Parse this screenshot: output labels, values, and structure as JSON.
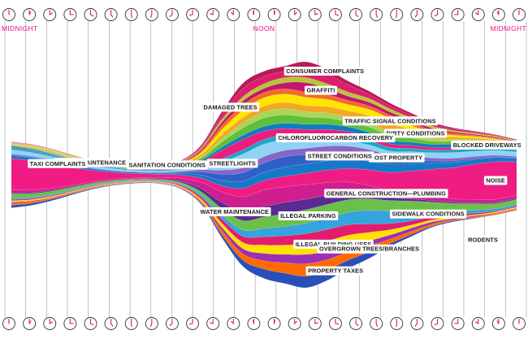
{
  "chart_data": {
    "type": "area",
    "x_tick_labels": [
      {
        "hour": 0,
        "text": "MIDNIGHT"
      },
      {
        "hour": 12,
        "text": "NOON"
      },
      {
        "hour": 24,
        "text": "MIDNIGHT"
      }
    ],
    "x_range": [
      0,
      24
    ],
    "grid": true,
    "legend": "none",
    "series": [
      {
        "name": "PROPERTY TAXES",
        "color": "#2b4fb8",
        "values": [
          0.25,
          0.2,
          0.15,
          0.1,
          0.08,
          0.06,
          0.05,
          0.04,
          0.05,
          0.1,
          0.3,
          0.6,
          0.9,
          1.0,
          1.1,
          1.0,
          0.8,
          0.6,
          0.3,
          0.2,
          0.1,
          0.1,
          0.05,
          0.05,
          0.05
        ]
      },
      {
        "name": "OVERGROWN TREES/BRANCHES",
        "color": "#ff6a00",
        "values": [
          0.2,
          0.15,
          0.1,
          0.08,
          0.06,
          0.05,
          0.04,
          0.04,
          0.05,
          0.1,
          0.4,
          0.6,
          0.8,
          1.0,
          1.2,
          1.0,
          0.8,
          0.6,
          0.4,
          0.3,
          0.2,
          0.1,
          0.1,
          0.1,
          0.1
        ]
      },
      {
        "name": "",
        "color": "#9b2fb5",
        "values": [
          0.1,
          0.08,
          0.06,
          0.05,
          0.04,
          0.03,
          0.03,
          0.03,
          0.05,
          0.1,
          0.3,
          0.5,
          0.7,
          0.8,
          0.9,
          0.8,
          0.7,
          0.5,
          0.4,
          0.3,
          0.2,
          0.1,
          0.1,
          0.05,
          0.05
        ]
      },
      {
        "name": "ILLEGAL BUILDING USES",
        "color": "#ffe000",
        "values": [
          0.15,
          0.12,
          0.1,
          0.08,
          0.06,
          0.05,
          0.05,
          0.06,
          0.1,
          0.2,
          0.4,
          0.6,
          0.8,
          0.9,
          1.0,
          1.0,
          0.9,
          0.8,
          0.5,
          0.3,
          0.2,
          0.15,
          0.1,
          0.1,
          0.1
        ]
      },
      {
        "name": "",
        "color": "#e21d6f",
        "values": [
          0.1,
          0.1,
          0.08,
          0.06,
          0.05,
          0.05,
          0.05,
          0.05,
          0.1,
          0.2,
          0.4,
          0.6,
          0.8,
          0.9,
          1.0,
          1.1,
          1.0,
          0.8,
          0.6,
          0.4,
          0.3,
          0.2,
          0.15,
          0.1,
          0.1
        ]
      },
      {
        "name": "SIDEWALK CONDITIONS",
        "color": "#35a4dc",
        "values": [
          0.15,
          0.12,
          0.1,
          0.08,
          0.06,
          0.05,
          0.05,
          0.06,
          0.1,
          0.2,
          0.4,
          0.6,
          0.8,
          0.9,
          1.0,
          1.1,
          1.2,
          1.3,
          1.2,
          1.0,
          0.6,
          0.4,
          0.3,
          0.2,
          0.2
        ]
      },
      {
        "name": "ILLEGAL PARKING",
        "color": "#6cc04a",
        "values": [
          0.4,
          0.35,
          0.3,
          0.25,
          0.2,
          0.15,
          0.1,
          0.1,
          0.15,
          0.3,
          0.6,
          0.9,
          1.1,
          1.2,
          1.3,
          1.3,
          1.2,
          1.1,
          1.0,
          0.9,
          0.8,
          0.7,
          0.6,
          0.5,
          0.45
        ]
      },
      {
        "name": "WATER MAINTENANCE",
        "color": "#5a2b93",
        "values": [
          0.1,
          0.1,
          0.08,
          0.06,
          0.05,
          0.05,
          0.05,
          0.06,
          0.1,
          0.3,
          0.6,
          0.9,
          1.0,
          1.1,
          1.0,
          0.9,
          0.7,
          0.5,
          0.3,
          0.2,
          0.15,
          0.1,
          0.1,
          0.1,
          0.1
        ]
      },
      {
        "name": "GENERAL CONSTRUCTION—PLUMBING",
        "color": "#cf1f8e",
        "values": [
          0.3,
          0.25,
          0.2,
          0.15,
          0.12,
          0.1,
          0.1,
          0.15,
          0.3,
          0.6,
          1.0,
          1.4,
          1.6,
          1.5,
          1.4,
          1.2,
          1.0,
          0.8,
          0.6,
          0.5,
          0.4,
          0.35,
          0.3,
          0.3,
          0.3
        ]
      },
      {
        "name": "NOISE",
        "color": "#ef1c84",
        "values": [
          3.0,
          2.8,
          2.3,
          1.6,
          1.0,
          0.6,
          0.4,
          0.3,
          0.3,
          0.4,
          0.6,
          0.8,
          0.9,
          1.0,
          1.1,
          1.2,
          1.3,
          1.5,
          1.8,
          2.2,
          2.6,
          3.0,
          3.4,
          3.6,
          3.2
        ]
      },
      {
        "name": "TAXI COMPLAINTS",
        "color": "#1878c8",
        "values": [
          0.3,
          0.28,
          0.25,
          0.2,
          0.15,
          0.12,
          0.1,
          0.1,
          0.15,
          0.3,
          0.5,
          0.7,
          0.8,
          0.9,
          0.9,
          0.9,
          0.9,
          0.85,
          0.8,
          0.7,
          0.6,
          0.5,
          0.45,
          0.4,
          0.35
        ]
      },
      {
        "name": "STREET CONDITIONS",
        "color": "#2f60c7",
        "values": [
          0.05,
          0.05,
          0.04,
          0.04,
          0.03,
          0.03,
          0.03,
          0.04,
          0.1,
          0.3,
          0.6,
          0.8,
          0.9,
          1.0,
          0.9,
          0.8,
          0.7,
          0.6,
          0.4,
          0.3,
          0.2,
          0.15,
          0.1,
          0.08,
          0.06
        ]
      },
      {
        "name": "LOST PROPERTY",
        "color": "#8b64c7",
        "values": [
          0.1,
          0.1,
          0.08,
          0.06,
          0.05,
          0.05,
          0.05,
          0.06,
          0.1,
          0.2,
          0.4,
          0.5,
          0.6,
          0.6,
          0.6,
          0.6,
          0.55,
          0.5,
          0.45,
          0.4,
          0.3,
          0.25,
          0.2,
          0.15,
          0.12
        ]
      },
      {
        "name": "STREETLIGHTS",
        "color": "#8fd3f4",
        "values": [
          0.4,
          0.35,
          0.3,
          0.25,
          0.2,
          0.15,
          0.1,
          0.1,
          0.15,
          0.3,
          0.8,
          1.3,
          1.2,
          1.0,
          0.8,
          0.6,
          0.5,
          0.45,
          0.4,
          0.45,
          0.5,
          0.55,
          0.5,
          0.45,
          0.42
        ]
      },
      {
        "name": "CHLOROFLUOROCARBON RECOVERY",
        "color": "#1ba7c9",
        "values": [
          0.2,
          0.18,
          0.15,
          0.12,
          0.1,
          0.08,
          0.07,
          0.08,
          0.1,
          0.15,
          0.3,
          0.4,
          0.45,
          0.5,
          0.5,
          0.5,
          0.45,
          0.4,
          0.35,
          0.3,
          0.25,
          0.25,
          0.22,
          0.2,
          0.2
        ]
      },
      {
        "name": "",
        "color": "#ec1e7b",
        "values": [
          0.05,
          0.05,
          0.04,
          0.04,
          0.03,
          0.03,
          0.03,
          0.04,
          0.1,
          0.3,
          0.8,
          1.0,
          0.8,
          0.6,
          0.5,
          0.5,
          0.45,
          0.4,
          0.35,
          0.3,
          0.25,
          0.22,
          0.2,
          0.18,
          0.15
        ]
      },
      {
        "name": "BLOCKED DRIVEWAYS",
        "color": "#0e7bc4",
        "values": [
          0.1,
          0.1,
          0.08,
          0.06,
          0.05,
          0.05,
          0.05,
          0.06,
          0.08,
          0.15,
          0.3,
          0.4,
          0.45,
          0.5,
          0.5,
          0.5,
          0.45,
          0.4,
          0.35,
          0.3,
          0.3,
          0.35,
          0.35,
          0.3,
          0.25
        ]
      },
      {
        "name": "",
        "color": "#5fbf3a",
        "values": [
          0.05,
          0.05,
          0.05,
          0.05,
          0.04,
          0.04,
          0.04,
          0.05,
          0.08,
          0.2,
          0.5,
          0.7,
          0.8,
          0.8,
          0.7,
          0.6,
          0.5,
          0.5,
          0.45,
          0.4,
          0.3,
          0.25,
          0.2,
          0.15,
          0.1
        ]
      },
      {
        "name": "SEWER MAINTENANCE",
        "color": "#a9d65a",
        "values": [
          0.1,
          0.15,
          0.2,
          0.15,
          0.1,
          0.05,
          0.04,
          0.04,
          0.06,
          0.12,
          0.3,
          0.5,
          0.6,
          0.6,
          0.5,
          0.5,
          0.45,
          0.4,
          0.35,
          0.3,
          0.25,
          0.2,
          0.15,
          0.1,
          0.1
        ]
      },
      {
        "name": "DIRTY CONDITIONS",
        "color": "#f2a623",
        "values": [
          0.05,
          0.05,
          0.04,
          0.04,
          0.03,
          0.03,
          0.03,
          0.04,
          0.08,
          0.2,
          0.4,
          0.5,
          0.55,
          0.6,
          0.6,
          0.6,
          0.6,
          0.7,
          0.8,
          0.5,
          0.3,
          0.2,
          0.15,
          0.1,
          0.08
        ]
      },
      {
        "name": "TRAFFIC SIGNAL CONDITIONS",
        "color": "#ffe600",
        "values": [
          0.05,
          0.05,
          0.04,
          0.04,
          0.03,
          0.03,
          0.03,
          0.04,
          0.08,
          0.2,
          0.5,
          0.7,
          0.8,
          0.8,
          0.8,
          0.7,
          0.6,
          0.6,
          0.5,
          0.4,
          0.3,
          0.2,
          0.15,
          0.1,
          0.08
        ]
      },
      {
        "name": "",
        "color": "#f26b2a",
        "values": [
          0.03,
          0.03,
          0.03,
          0.03,
          0.02,
          0.02,
          0.02,
          0.03,
          0.05,
          0.15,
          0.4,
          0.5,
          0.5,
          0.5,
          0.5,
          0.45,
          0.4,
          0.35,
          0.3,
          0.25,
          0.2,
          0.15,
          0.1,
          0.08,
          0.05
        ]
      },
      {
        "name": "GRAFFITI",
        "color": "#c3166e",
        "values": [
          0.03,
          0.03,
          0.03,
          0.03,
          0.02,
          0.02,
          0.02,
          0.03,
          0.05,
          0.15,
          0.3,
          0.4,
          0.4,
          0.6,
          0.9,
          0.6,
          0.4,
          0.35,
          0.3,
          0.25,
          0.2,
          0.15,
          0.1,
          0.08,
          0.05
        ]
      },
      {
        "name": "SANITATION CONDITIONS",
        "color": "#b3c832",
        "values": [
          0.05,
          0.05,
          0.04,
          0.04,
          0.03,
          0.03,
          0.03,
          0.04,
          0.06,
          0.15,
          0.3,
          0.4,
          0.45,
          0.5,
          0.5,
          0.45,
          0.4,
          0.35,
          0.3,
          0.25,
          0.2,
          0.15,
          0.12,
          0.1,
          0.08
        ]
      },
      {
        "name": "DAMAGED TREES",
        "color": "#dc1f6d",
        "values": [
          0.03,
          0.03,
          0.03,
          0.03,
          0.02,
          0.02,
          0.02,
          0.03,
          0.05,
          0.15,
          0.4,
          0.8,
          0.7,
          0.6,
          0.8,
          0.9,
          0.7,
          0.4,
          0.3,
          0.25,
          0.2,
          0.15,
          0.1,
          0.08,
          0.05
        ]
      },
      {
        "name": "CONSUMER COMPLAINTS",
        "color": "#b61a5a",
        "values": [
          0.02,
          0.02,
          0.02,
          0.02,
          0.02,
          0.02,
          0.02,
          0.02,
          0.04,
          0.1,
          0.3,
          0.5,
          0.5,
          0.5,
          0.7,
          0.5,
          0.35,
          0.3,
          0.25,
          0.2,
          0.15,
          0.1,
          0.08,
          0.05,
          0.03
        ]
      }
    ],
    "annotations": [
      {
        "text": "CONSUMER COMPLAINTS",
        "hour": 14.9,
        "series": "CONSUMER COMPLAINTS"
      },
      {
        "text": "GRAFFITI",
        "hour": 14.7,
        "series": "GRAFFITI"
      },
      {
        "text": "DAMAGED TREES",
        "hour": 10.4,
        "series": "DAMAGED TREES"
      },
      {
        "text": "TRAFFIC SIGNAL CONDITIONS",
        "hour": 18.0,
        "series": "TRAFFIC SIGNAL CONDITIONS"
      },
      {
        "text": "DIRTY CONDITIONS",
        "hour": 19.2,
        "series": "DIRTY CONDITIONS"
      },
      {
        "text": "SANITATION CONDITIONS",
        "hour": 7.4,
        "series": "SANITATION CONDITIONS"
      },
      {
        "text": "SEWER MAINTENANCE",
        "hour": 3.8,
        "series": "SEWER MAINTENANCE"
      },
      {
        "text": "CHLOROFLUOROCARBON RECOVERY",
        "hour": 15.4,
        "series": "CHLOROFLUOROCARBON RECOVERY"
      },
      {
        "text": "BLOCKED DRIVEWAYS",
        "hour": 22.6,
        "series": "BLOCKED DRIVEWAYS"
      },
      {
        "text": "STREETLIGHTS",
        "hour": 10.5,
        "series": "STREETLIGHTS"
      },
      {
        "text": "LOST PROPERTY",
        "hour": 18.3,
        "series": "LOST PROPERTY"
      },
      {
        "text": "STREET CONDITIONS",
        "hour": 15.6,
        "series": "STREET CONDITIONS"
      },
      {
        "text": "TAXI COMPLAINTS",
        "hour": 2.2,
        "series": "TAXI COMPLAINTS"
      },
      {
        "text": "NOISE",
        "hour": 23.0,
        "series": "NOISE"
      },
      {
        "text": "GENERAL CONSTRUCTION—PLUMBING",
        "hour": 17.8,
        "series": "GENERAL CONSTRUCTION—PLUMBING"
      },
      {
        "text": "WATER MAINTENANCE",
        "hour": 10.6,
        "series": "WATER MAINTENANCE"
      },
      {
        "text": "ILLEGAL PARKING",
        "hour": 14.1,
        "series": "ILLEGAL PARKING"
      },
      {
        "text": "ILLEGAL BUILDING USES",
        "hour": 15.3,
        "series": "ILLEGAL BUILDING USES"
      },
      {
        "text": "SIDEWALK CONDITIONS",
        "hour": 19.8,
        "series": "SIDEWALK CONDITIONS"
      },
      {
        "text": "RODENTS",
        "hour": 22.4,
        "series": "RODENTS"
      },
      {
        "text": "OVERGROWN TREES/BRANCHES",
        "hour": 17.0,
        "series": "OVERGROWN TREES/BRANCHES"
      },
      {
        "text": "PROPERTY TAXES",
        "hour": 15.4,
        "series": "PROPERTY TAXES"
      }
    ],
    "colors": {
      "accent": "#e0157a",
      "grid": "#9a9a9a",
      "clock_face": "#ffffff",
      "clock_hand": "#e0157a",
      "label_box": "#ffffff",
      "label_text": "#1a1a1a"
    }
  }
}
